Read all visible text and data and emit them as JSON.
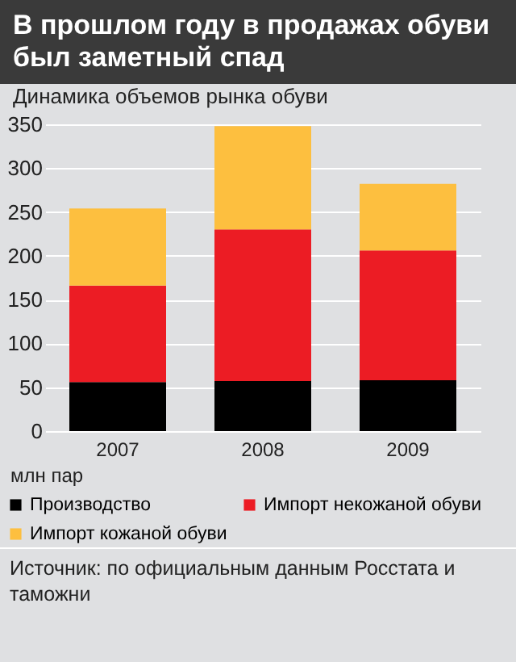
{
  "chart_data": {
    "type": "bar",
    "title": "В прошлом году в продажах обуви был заметный спад",
    "subtitle": "Динамика объемов рынка обуви",
    "ylabel": "млн пар",
    "categories": [
      "2007",
      "2008",
      "2009"
    ],
    "stacked": true,
    "ylim": [
      0,
      350
    ],
    "yticks": [
      0,
      50,
      100,
      150,
      200,
      250,
      300,
      350
    ],
    "grid": "y",
    "legend": "bottom",
    "series": [
      {
        "name": "Производство",
        "color": "#000000",
        "values": [
          56,
          57,
          58
        ]
      },
      {
        "name": "Импорт некожаной обуви",
        "color": "#ec1c24",
        "values": [
          110,
          173,
          148
        ]
      },
      {
        "name": "Импорт кожаной обуви",
        "color": "#fdbf3f",
        "values": [
          88,
          118,
          76
        ]
      }
    ],
    "annotations": [
      "Источник: по официальным данным Росстата и таможни"
    ]
  }
}
